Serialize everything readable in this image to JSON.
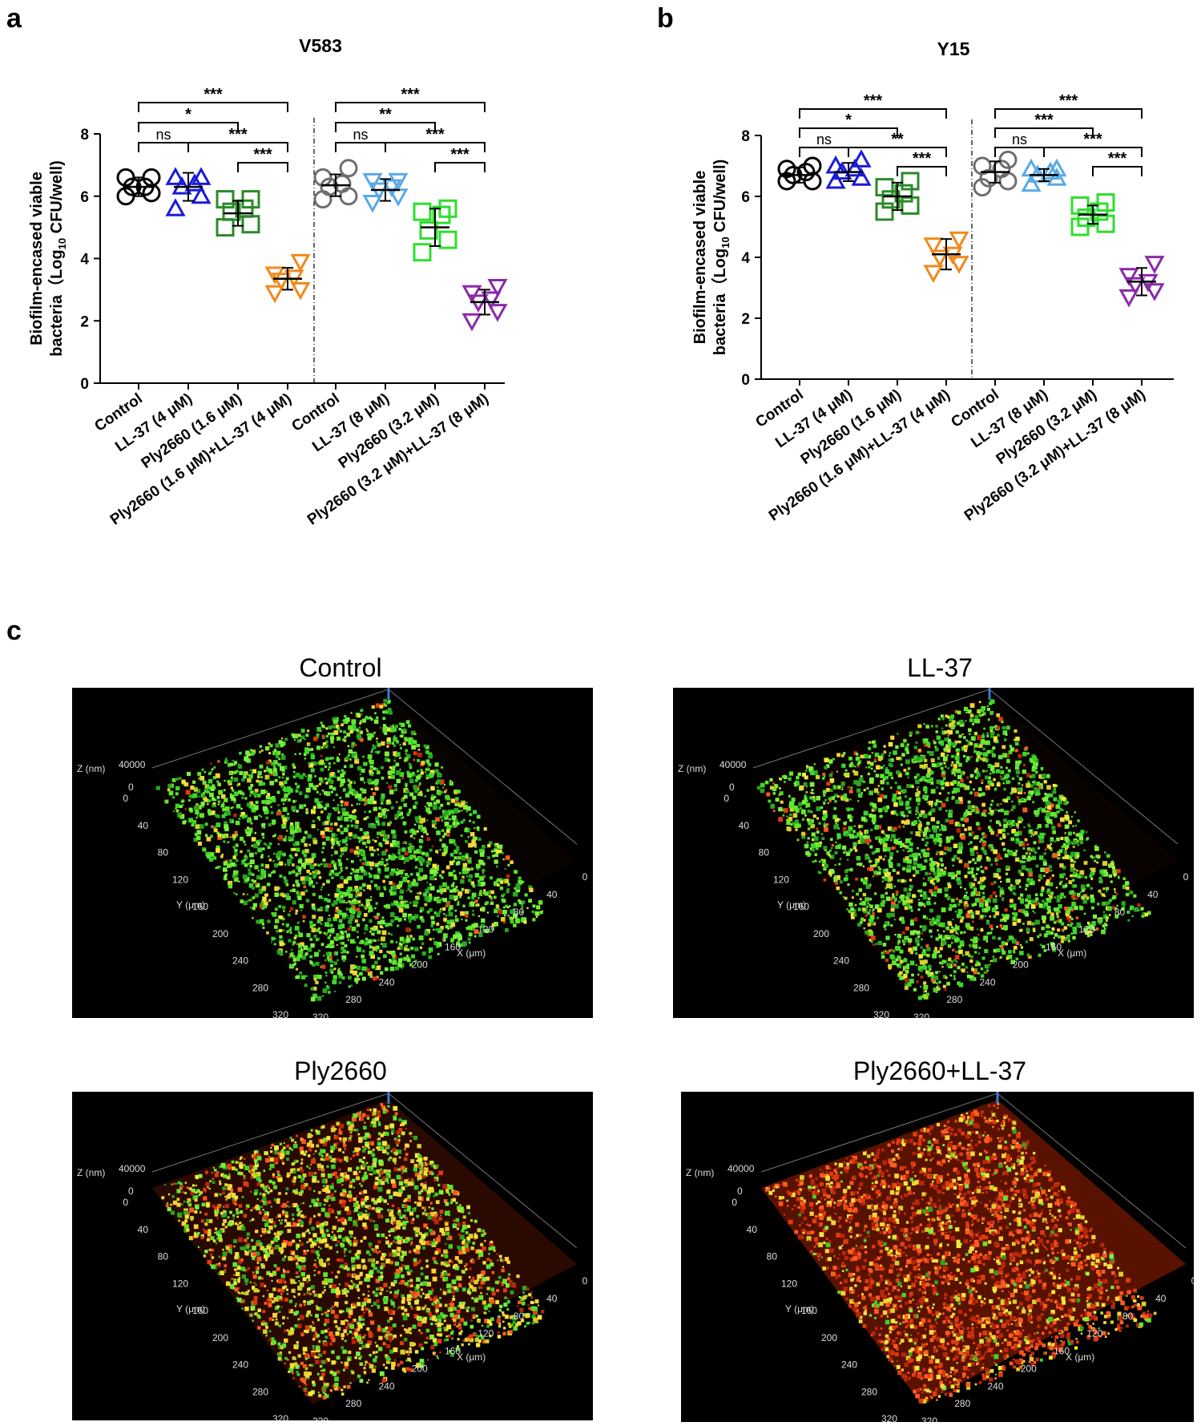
{
  "panels": {
    "a": "a",
    "b": "b",
    "c": "c"
  },
  "chart_data": [
    {
      "type": "scatter",
      "title": "V583",
      "ylabel_line1": "Biofilm-encased viable",
      "ylabel_line2_pre": "bacteria（Log",
      "ylabel_sub": "10",
      "ylabel_line2_post": " CFU/well)",
      "ylim": [
        0,
        8
      ],
      "yticks": [
        "0",
        "2",
        "4",
        "6",
        "8"
      ],
      "categories": [
        "Control",
        "LL-37 (4 μM)",
        "Ply2660 (1.6 μM)",
        "Ply2660 (1.6 μM)+LL-37 (4 μM)",
        "Control",
        "LL-37 (8 μM)",
        "Ply2660 (3.2 μM)",
        "Ply2660 (3.2 μM)+LL-37 (8 μM)"
      ],
      "series": [
        {
          "name": "Control",
          "marker": "circle",
          "color": "#000000",
          "mean": 6.3,
          "sd": 0.3,
          "values": [
            6.0,
            6.1,
            6.3,
            6.3,
            6.6,
            6.6
          ]
        },
        {
          "name": "LL-37 (4 μM)",
          "marker": "triangle-up",
          "color": "#1a1adc",
          "mean": 6.3,
          "sd": 0.45,
          "values": [
            5.6,
            6.0,
            6.3,
            6.4,
            6.6,
            6.6
          ]
        },
        {
          "name": "Ply2660 (1.6 μM)",
          "marker": "square",
          "color": "#2a8a2a",
          "mean": 5.45,
          "sd": 0.4,
          "values": [
            5.0,
            5.1,
            5.5,
            5.6,
            5.9,
            5.9
          ]
        },
        {
          "name": "Ply2660 (1.6 μM)+LL-37 (4 μM)",
          "marker": "triangle-down",
          "color": "#f08a1c",
          "mean": 3.35,
          "sd": 0.35,
          "values": [
            2.9,
            3.0,
            3.3,
            3.4,
            3.5,
            3.9
          ]
        },
        {
          "name": "Control",
          "marker": "circle",
          "color": "#6e6e6e",
          "mean": 6.35,
          "sd": 0.35,
          "values": [
            5.9,
            6.0,
            6.3,
            6.4,
            6.6,
            6.9
          ]
        },
        {
          "name": "LL-37 (8 μM)",
          "marker": "triangle-down",
          "color": "#5aa9e6",
          "mean": 6.2,
          "sd": 0.35,
          "values": [
            5.8,
            6.0,
            6.2,
            6.3,
            6.5,
            6.5
          ]
        },
        {
          "name": "Ply2660 (3.2 μM)",
          "marker": "square",
          "color": "#2ede2e",
          "mean": 5.0,
          "sd": 0.6,
          "values": [
            4.2,
            4.6,
            4.9,
            5.4,
            5.5,
            5.6
          ]
        },
        {
          "name": "Ply2660 (3.2 μM)+LL-37 (8 μM)",
          "marker": "triangle-down",
          "color": "#8a2aa8",
          "mean": 2.6,
          "sd": 0.4,
          "values": [
            2.0,
            2.3,
            2.6,
            2.7,
            2.9,
            3.1
          ]
        }
      ],
      "comparisons": [
        {
          "from": 0,
          "to": 1,
          "label": "ns",
          "level": 0
        },
        {
          "from": 1,
          "to": 3,
          "label": "***",
          "level": 0
        },
        {
          "from": 2,
          "to": 3,
          "label": "***",
          "level": -1
        },
        {
          "from": 0,
          "to": 2,
          "label": "*",
          "level": 1
        },
        {
          "from": 0,
          "to": 3,
          "label": "***",
          "level": 2
        },
        {
          "from": 4,
          "to": 5,
          "label": "ns",
          "level": 0
        },
        {
          "from": 5,
          "to": 7,
          "label": "***",
          "level": 0
        },
        {
          "from": 6,
          "to": 7,
          "label": "***",
          "level": -1
        },
        {
          "from": 4,
          "to": 6,
          "label": "**",
          "level": 1
        },
        {
          "from": 4,
          "to": 7,
          "label": "***",
          "level": 2
        }
      ]
    },
    {
      "type": "scatter",
      "title": "Y15",
      "ylabel_line1": "Biofilm-encased viable",
      "ylabel_line2_pre": "bacteria（Log",
      "ylabel_sub": "10",
      "ylabel_line2_post": " CFU/well)",
      "ylim": [
        0,
        8
      ],
      "yticks": [
        "0",
        "2",
        "4",
        "6",
        "8"
      ],
      "categories": [
        "Control",
        "LL-37 (4 μM)",
        "Ply2660 (1.6 μM)",
        "Ply2660 (1.6 μM)+LL-37 (4 μM)",
        "Control",
        "LL-37 (8 μM)",
        "Ply2660 (3.2 μM)",
        "Ply2660 (3.2 μM)+LL-37 (8 μM)"
      ],
      "series": [
        {
          "name": "Control",
          "marker": "circle",
          "color": "#000000",
          "mean": 6.7,
          "sd": 0.25,
          "values": [
            6.5,
            6.5,
            6.7,
            6.8,
            6.9,
            7.0
          ]
        },
        {
          "name": "LL-37 (4 μM)",
          "marker": "triangle-up",
          "color": "#1a1adc",
          "mean": 6.8,
          "sd": 0.3,
          "values": [
            6.5,
            6.6,
            6.8,
            6.9,
            7.0,
            7.2
          ]
        },
        {
          "name": "Ply2660 (1.6 μM)",
          "marker": "square",
          "color": "#2a8a2a",
          "mean": 6.0,
          "sd": 0.45,
          "values": [
            5.5,
            5.7,
            5.9,
            6.1,
            6.3,
            6.5
          ]
        },
        {
          "name": "Ply2660 (1.6 μM)+LL-37 (4 μM)",
          "marker": "triangle-down",
          "color": "#f08a1c",
          "mean": 4.1,
          "sd": 0.5,
          "values": [
            3.5,
            3.8,
            4.0,
            4.1,
            4.4,
            4.6
          ]
        },
        {
          "name": "Control",
          "marker": "circle",
          "color": "#6e6e6e",
          "mean": 6.8,
          "sd": 0.35,
          "values": [
            6.3,
            6.5,
            6.6,
            6.9,
            7.0,
            7.2
          ]
        },
        {
          "name": "LL-37 (8 μM)",
          "marker": "triangle-up",
          "color": "#5aa9e6",
          "mean": 6.7,
          "sd": 0.2,
          "values": [
            6.4,
            6.6,
            6.7,
            6.8,
            6.9,
            6.9
          ]
        },
        {
          "name": "Ply2660 (3.2 μM)",
          "marker": "square",
          "color": "#2ede2e",
          "mean": 5.4,
          "sd": 0.3,
          "values": [
            5.0,
            5.1,
            5.3,
            5.5,
            5.7,
            5.8
          ]
        },
        {
          "name": "Ply2660 (3.2 μM)+LL-37 (8 μM)",
          "marker": "triangle-down",
          "color": "#8a2aa8",
          "mean": 3.2,
          "sd": 0.45,
          "values": [
            2.7,
            2.9,
            3.1,
            3.2,
            3.4,
            3.8
          ]
        }
      ],
      "comparisons": [
        {
          "from": 0,
          "to": 1,
          "label": "ns",
          "level": 0
        },
        {
          "from": 1,
          "to": 3,
          "label": "**",
          "level": 0
        },
        {
          "from": 2,
          "to": 3,
          "label": "***",
          "level": -1
        },
        {
          "from": 0,
          "to": 2,
          "label": "*",
          "level": 1
        },
        {
          "from": 0,
          "to": 3,
          "label": "***",
          "level": 2
        },
        {
          "from": 4,
          "to": 5,
          "label": "ns",
          "level": 0
        },
        {
          "from": 5,
          "to": 7,
          "label": "***",
          "level": 0
        },
        {
          "from": 6,
          "to": 7,
          "label": "***",
          "level": -1
        },
        {
          "from": 4,
          "to": 6,
          "label": "***",
          "level": 1
        },
        {
          "from": 4,
          "to": 7,
          "label": "***",
          "level": 2
        }
      ]
    }
  ],
  "micrographs": [
    {
      "title": "Control",
      "green_fraction": 0.82,
      "yellow_fraction": 0.14,
      "red_fraction": 0.04,
      "bg": "#060300"
    },
    {
      "title": "LL-37",
      "green_fraction": 0.74,
      "yellow_fraction": 0.18,
      "red_fraction": 0.08,
      "bg": "#080300"
    },
    {
      "title": "Ply2660",
      "green_fraction": 0.35,
      "yellow_fraction": 0.4,
      "red_fraction": 0.25,
      "bg": "#2a0a00"
    },
    {
      "title": "Ply2660+LL-37",
      "green_fraction": 0.06,
      "yellow_fraction": 0.24,
      "red_fraction": 0.7,
      "bg": "#5a1200"
    }
  ],
  "axis3d": {
    "z_label": "Z (nm)",
    "z_ticks": [
      "40000",
      "0"
    ],
    "y_label": "Y (μm)",
    "y_ticks": [
      "0",
      "40",
      "80",
      "120",
      "160",
      "200",
      "240",
      "280",
      "320"
    ],
    "x_label": "X (μm)",
    "x_ticks": [
      "0",
      "40",
      "80",
      "120",
      "160",
      "200",
      "240",
      "280",
      "320"
    ]
  }
}
